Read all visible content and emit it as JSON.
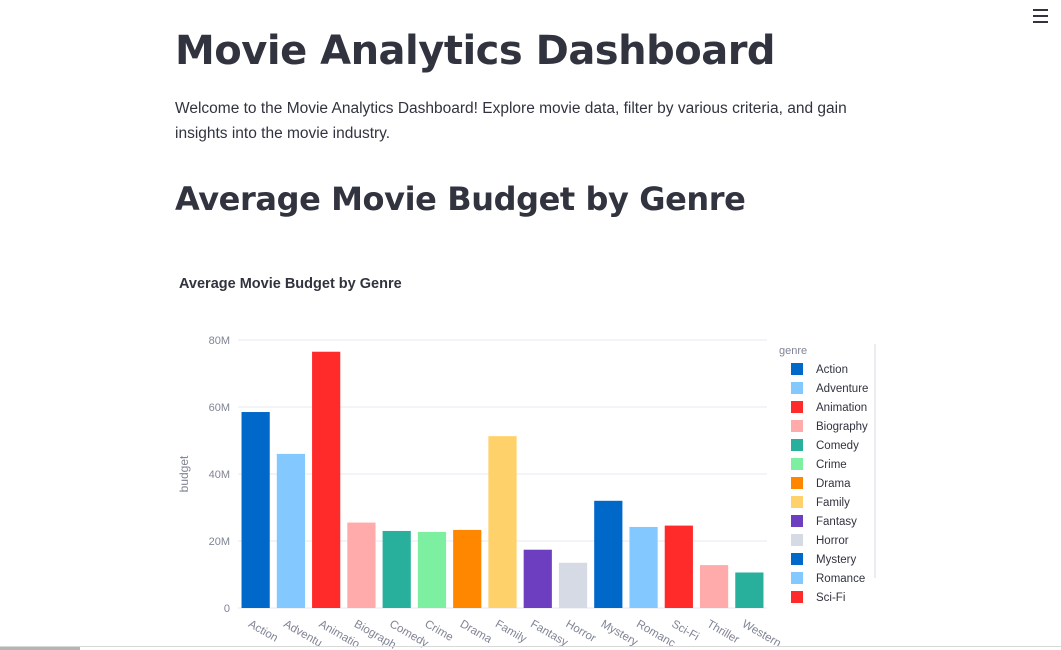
{
  "page": {
    "title": "Movie Analytics Dashboard",
    "intro": "Welcome to the Movie Analytics Dashboard! Explore movie data, filter by various criteria, and gain insights into the movie industry.",
    "section_title": "Average Movie Budget by Genre"
  },
  "chart_data": {
    "type": "bar",
    "title": "Average Movie Budget by Genre",
    "xlabel": "",
    "ylabel": "budget",
    "ylim": [
      0,
      80000000
    ],
    "yticks": [
      0,
      20000000,
      40000000,
      60000000,
      80000000
    ],
    "ytick_labels": [
      "0",
      "20M",
      "40M",
      "60M",
      "80M"
    ],
    "grid": true,
    "legend_title": "genre",
    "legend_position": "right",
    "categories": [
      "Action",
      "Adventure",
      "Animation",
      "Biography",
      "Comedy",
      "Crime",
      "Drama",
      "Family",
      "Fantasy",
      "Horror",
      "Mystery",
      "Romance",
      "Sci-Fi",
      "Thriller",
      "Western"
    ],
    "tick_labels": [
      "Action",
      "Adventu",
      "Animatio",
      "Biograph",
      "Comedy",
      "Crime",
      "Drama",
      "Family",
      "Fantasy",
      "Horror",
      "Mystery",
      "Romanc",
      "Sci-Fi",
      "Thriller",
      "Western"
    ],
    "values": [
      58500000,
      46000000,
      76500000,
      25500000,
      23000000,
      22700000,
      23300000,
      51300000,
      17400000,
      13500000,
      32000000,
      24200000,
      24600000,
      12800000,
      10600000
    ],
    "colors": [
      "#0068c9",
      "#83c9ff",
      "#ff2b2b",
      "#ffabab",
      "#29b09d",
      "#7defa1",
      "#ff8700",
      "#ffd16a",
      "#6d3fc0",
      "#d5dae5",
      "#0068c9",
      "#83c9ff",
      "#ff2b2b",
      "#ffabab",
      "#29b09d"
    ],
    "legend_items": [
      "Action",
      "Adventure",
      "Animation",
      "Biography",
      "Comedy",
      "Crime",
      "Drama",
      "Family",
      "Fantasy",
      "Horror",
      "Mystery",
      "Romance",
      "Sci-Fi"
    ]
  },
  "icons": {
    "menu": "hamburger-menu-icon"
  }
}
